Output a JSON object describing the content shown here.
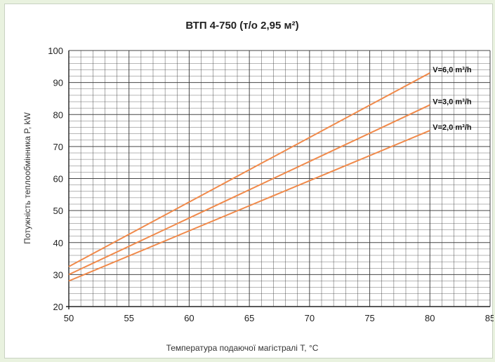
{
  "chart_data": {
    "type": "line",
    "title": "ВТП 4-750 (т/о 2,95 м²)",
    "xlabel": "Температура подаючої магістралі T, °C",
    "ylabel": "Потужність теплообмінника P, kW",
    "xlim": [
      50,
      85
    ],
    "ylim": [
      20,
      100
    ],
    "xticks": [
      50,
      55,
      60,
      65,
      70,
      75,
      80,
      85
    ],
    "yticks": [
      20,
      30,
      40,
      50,
      60,
      70,
      80,
      90,
      100
    ],
    "grid": true,
    "colors": {
      "series": "#f08a4b",
      "grid": "#333333"
    },
    "series": [
      {
        "name": "V=6,0 m³/h",
        "x": [
          50,
          80
        ],
        "y": [
          32.5,
          93
        ]
      },
      {
        "name": "V=3,0 m³/h",
        "x": [
          50,
          80
        ],
        "y": [
          30,
          83
        ]
      },
      {
        "name": "V=2,0 m³/h",
        "x": [
          50,
          80
        ],
        "y": [
          28,
          75
        ]
      }
    ]
  }
}
